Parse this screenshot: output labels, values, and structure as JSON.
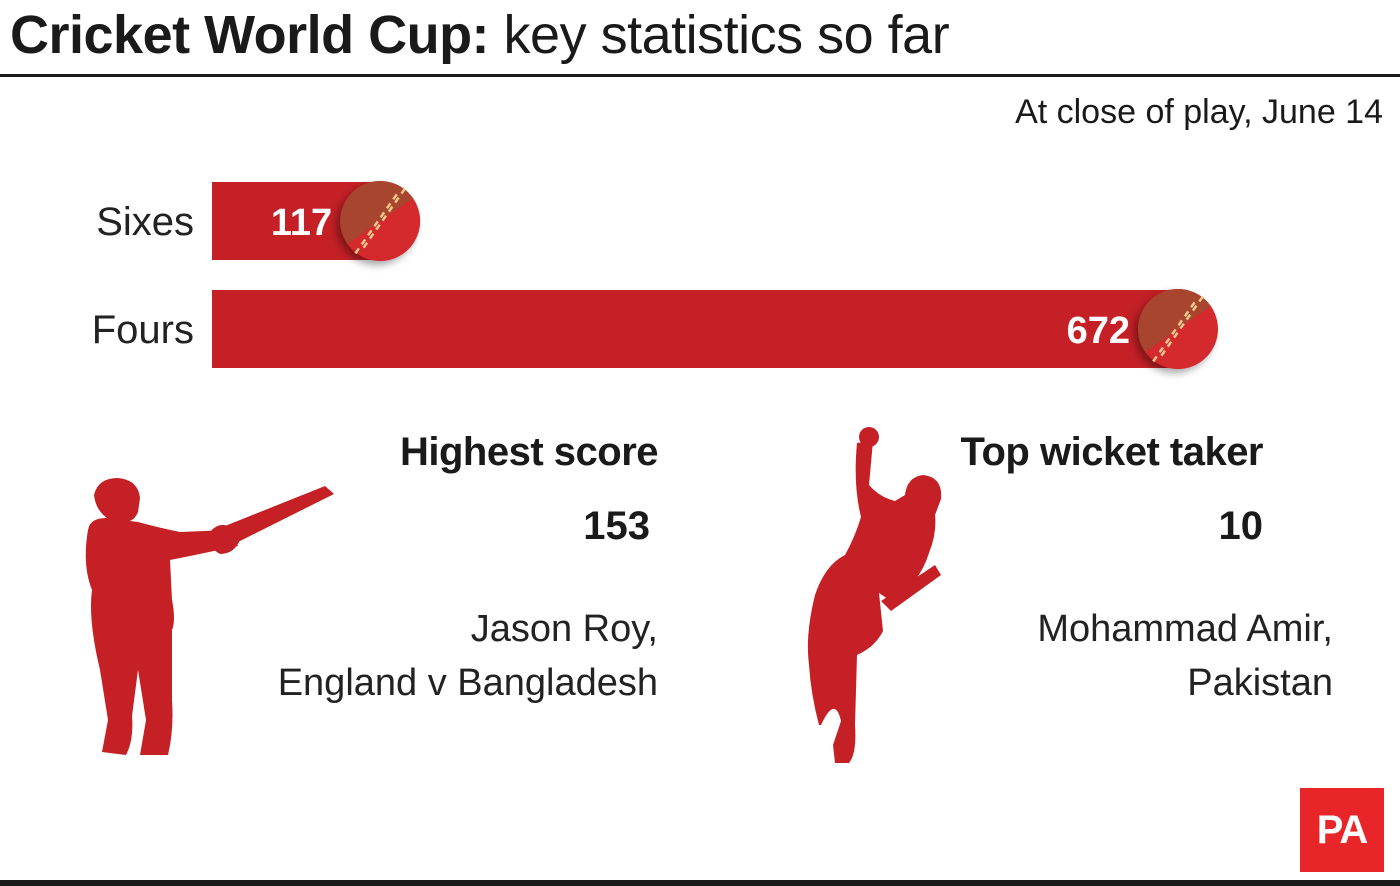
{
  "header": {
    "title_bold": "Cricket World Cup:",
    "title_light": "key statistics so far",
    "subtitle": "At close of play, June 14"
  },
  "colors": {
    "bar": "#c42026",
    "ball_light": "#d4292f",
    "ball_dark": "#a8452f",
    "seam": "#f1c78a",
    "silhouette": "#c42026",
    "logo": "#e8262a"
  },
  "chart_data": {
    "type": "bar",
    "orientation": "horizontal",
    "categories": [
      "Sixes",
      "Fours"
    ],
    "values": [
      117,
      672
    ],
    "value_labels": [
      "117",
      "672"
    ],
    "title": "",
    "xlabel": "",
    "ylabel": "",
    "grid": false,
    "legend": "none"
  },
  "stats": {
    "highest_score": {
      "heading": "Highest score",
      "value": "153",
      "player": "Jason Roy,",
      "match": "England v Bangladesh",
      "icon": "batsman-silhouette-icon"
    },
    "top_wicket_taker": {
      "heading": "Top wicket taker",
      "value": "10",
      "player": "Mohammad Amir,",
      "team": "Pakistan",
      "icon": "bowler-silhouette-icon"
    }
  },
  "logo": {
    "text": "PA"
  }
}
